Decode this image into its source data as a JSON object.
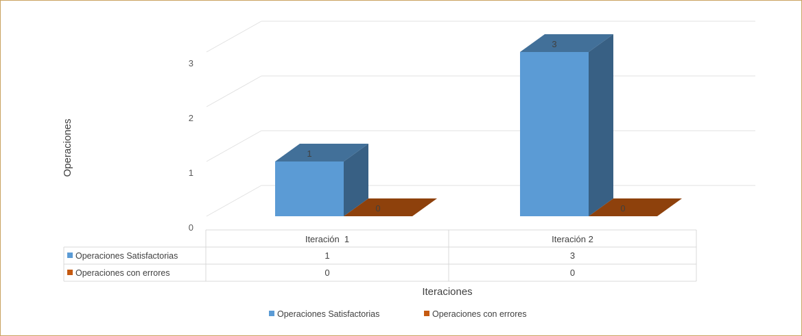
{
  "chart_data": {
    "type": "bar",
    "style": "3d-clustered-column-with-data-table",
    "categories": [
      "Iteración  1",
      "Iteración 2"
    ],
    "series": [
      {
        "name": "Operaciones Satisfactorias",
        "color": "#5b9bd5",
        "values": [
          1,
          3
        ]
      },
      {
        "name": "Operaciones con errores",
        "color": "#c55a11",
        "values": [
          0,
          0
        ]
      }
    ],
    "xlabel": "Iteraciones",
    "ylabel": "Operaciones",
    "ylim": [
      0,
      3
    ],
    "yticks": [
      "0",
      "1",
      "2",
      "3"
    ],
    "data_labels": true,
    "legend_position": "bottom",
    "grid": true
  }
}
